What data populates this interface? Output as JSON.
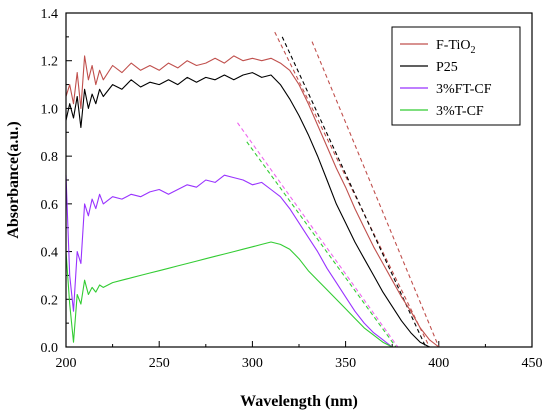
{
  "chart_data": {
    "type": "line",
    "xlabel": "Wavelength (nm)",
    "ylabel": "Absorbance(a.u.)",
    "xlim": [
      200,
      450
    ],
    "ylim": [
      0.0,
      1.4
    ],
    "x_ticks": [
      "200",
      "250",
      "300",
      "350",
      "400",
      "450"
    ],
    "y_ticks": [
      "0.0",
      "0.2",
      "0.4",
      "0.6",
      "0.8",
      "1.0",
      "1.2",
      "1.4"
    ],
    "legend_position": "top-right",
    "series": [
      {
        "name": "F-TiO",
        "name_sub": "2",
        "color": "#c0504d",
        "x": [
          200,
          202,
          204,
          206,
          208,
          210,
          212,
          214,
          216,
          218,
          220,
          225,
          230,
          235,
          240,
          245,
          250,
          255,
          260,
          265,
          270,
          275,
          280,
          285,
          290,
          295,
          300,
          305,
          310,
          315,
          320,
          325,
          330,
          335,
          340,
          345,
          350,
          355,
          360,
          365,
          370,
          375,
          380,
          385,
          390,
          395,
          400
        ],
        "y": [
          1.05,
          1.1,
          1.02,
          1.15,
          1.0,
          1.22,
          1.12,
          1.18,
          1.1,
          1.16,
          1.12,
          1.18,
          1.15,
          1.19,
          1.16,
          1.18,
          1.16,
          1.19,
          1.17,
          1.2,
          1.18,
          1.19,
          1.21,
          1.19,
          1.22,
          1.2,
          1.21,
          1.2,
          1.21,
          1.19,
          1.16,
          1.1,
          1.02,
          0.93,
          0.84,
          0.75,
          0.67,
          0.58,
          0.5,
          0.42,
          0.35,
          0.28,
          0.21,
          0.15,
          0.08,
          0.03,
          0.0
        ]
      },
      {
        "name": "P25",
        "name_sub": "",
        "color": "#000000",
        "x": [
          200,
          202,
          204,
          206,
          208,
          210,
          212,
          214,
          216,
          218,
          220,
          225,
          230,
          235,
          240,
          245,
          250,
          255,
          260,
          265,
          270,
          275,
          280,
          285,
          290,
          295,
          300,
          305,
          310,
          315,
          320,
          325,
          330,
          335,
          340,
          345,
          350,
          355,
          360,
          365,
          370,
          375,
          380,
          385,
          390,
          395
        ],
        "y": [
          0.95,
          1.02,
          0.96,
          1.05,
          0.92,
          1.08,
          1.0,
          1.06,
          1.02,
          1.08,
          1.05,
          1.1,
          1.08,
          1.12,
          1.09,
          1.11,
          1.1,
          1.12,
          1.1,
          1.13,
          1.11,
          1.13,
          1.12,
          1.14,
          1.12,
          1.14,
          1.15,
          1.13,
          1.14,
          1.1,
          1.04,
          0.97,
          0.89,
          0.8,
          0.7,
          0.6,
          0.52,
          0.44,
          0.37,
          0.3,
          0.23,
          0.17,
          0.11,
          0.06,
          0.02,
          0.0
        ]
      },
      {
        "name": "3%FT-CF",
        "name_sub": "",
        "color": "#9933ff",
        "x": [
          200,
          202,
          204,
          206,
          208,
          210,
          212,
          214,
          216,
          218,
          220,
          225,
          230,
          235,
          240,
          245,
          250,
          255,
          260,
          265,
          270,
          275,
          280,
          285,
          290,
          295,
          300,
          305,
          310,
          315,
          320,
          325,
          330,
          335,
          340,
          345,
          350,
          355,
          360,
          365,
          370,
          375
        ],
        "y": [
          0.72,
          0.3,
          0.15,
          0.4,
          0.35,
          0.6,
          0.55,
          0.62,
          0.58,
          0.64,
          0.6,
          0.63,
          0.62,
          0.64,
          0.63,
          0.65,
          0.66,
          0.64,
          0.66,
          0.68,
          0.67,
          0.7,
          0.69,
          0.72,
          0.71,
          0.7,
          0.68,
          0.69,
          0.66,
          0.63,
          0.58,
          0.52,
          0.46,
          0.4,
          0.33,
          0.27,
          0.21,
          0.15,
          0.1,
          0.06,
          0.03,
          0.0
        ]
      },
      {
        "name": "3%T-CF",
        "name_sub": "",
        "color": "#33cc33",
        "x": [
          200,
          202,
          204,
          206,
          208,
          210,
          212,
          214,
          216,
          218,
          220,
          225,
          230,
          235,
          240,
          245,
          250,
          255,
          260,
          265,
          270,
          275,
          280,
          285,
          290,
          295,
          300,
          305,
          310,
          315,
          320,
          325,
          330,
          335,
          340,
          345,
          350,
          355,
          360,
          365,
          370,
          375
        ],
        "y": [
          0.4,
          0.18,
          0.02,
          0.22,
          0.18,
          0.28,
          0.22,
          0.25,
          0.23,
          0.26,
          0.25,
          0.27,
          0.28,
          0.29,
          0.3,
          0.31,
          0.32,
          0.33,
          0.34,
          0.35,
          0.36,
          0.37,
          0.38,
          0.39,
          0.4,
          0.41,
          0.42,
          0.43,
          0.44,
          0.43,
          0.41,
          0.37,
          0.32,
          0.28,
          0.24,
          0.2,
          0.16,
          0.12,
          0.08,
          0.05,
          0.02,
          0.0
        ]
      }
    ],
    "tangent_lines": [
      {
        "color": "#c0504d",
        "x": [
          332,
          400
        ],
        "y": [
          1.28,
          0.0
        ]
      },
      {
        "color": "#c0504d",
        "x": [
          312,
          395
        ],
        "y": [
          1.32,
          0.0
        ]
      },
      {
        "color": "#000000",
        "x": [
          316,
          393
        ],
        "y": [
          1.3,
          0.0
        ]
      },
      {
        "color": "#ee66ee",
        "x": [
          292,
          378
        ],
        "y": [
          0.94,
          0.0
        ]
      },
      {
        "color": "#33cc33",
        "x": [
          297,
          377
        ],
        "y": [
          0.86,
          0.0
        ]
      }
    ]
  }
}
